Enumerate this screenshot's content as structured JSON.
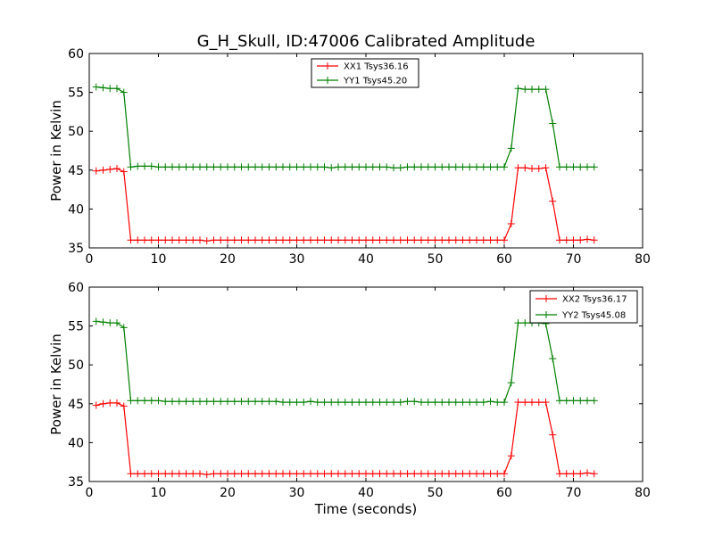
{
  "figure": {
    "title": "G_H_Skull, ID:47006 Calibrated Amplitude"
  },
  "colors": {
    "xx": "#ff0000",
    "yy": "#008000"
  },
  "chart_data": [
    {
      "type": "line",
      "title": "G_H_Skull, ID:47006 Calibrated Amplitude",
      "xlabel": "",
      "ylabel": "Power in Kelvin",
      "xlim": [
        0,
        80
      ],
      "ylim": [
        35,
        60
      ],
      "xticks": [
        0,
        10,
        20,
        30,
        40,
        50,
        60,
        70,
        80
      ],
      "yticks": [
        35,
        40,
        45,
        50,
        55,
        60
      ],
      "grid": false,
      "legend": "top-center",
      "series": [
        {
          "name": "XX1 Tsys36.16",
          "color": "#ff0000",
          "x": [
            1,
            2,
            3,
            4,
            5,
            6,
            7,
            8,
            9,
            10,
            11,
            12,
            13,
            14,
            15,
            16,
            17,
            18,
            19,
            20,
            21,
            22,
            23,
            24,
            25,
            26,
            27,
            28,
            29,
            30,
            31,
            32,
            33,
            34,
            35,
            36,
            37,
            38,
            39,
            40,
            41,
            42,
            43,
            44,
            45,
            46,
            47,
            48,
            49,
            50,
            51,
            52,
            53,
            54,
            55,
            56,
            57,
            58,
            59,
            60,
            61,
            62,
            63,
            64,
            65,
            66,
            67,
            68,
            69,
            70,
            71,
            72,
            73
          ],
          "y": [
            44.9,
            45.0,
            45.1,
            45.2,
            44.8,
            36.0,
            36.0,
            36.0,
            36.0,
            36.0,
            36.0,
            36.0,
            36.0,
            36.0,
            36.0,
            36.0,
            35.9,
            36.0,
            36.0,
            36.0,
            36.0,
            36.0,
            36.0,
            36.0,
            36.0,
            36.0,
            36.0,
            36.0,
            36.0,
            36.0,
            36.0,
            36.0,
            36.0,
            36.0,
            36.0,
            36.0,
            36.0,
            36.0,
            36.0,
            36.0,
            36.0,
            36.0,
            36.0,
            36.0,
            36.0,
            36.0,
            36.0,
            36.0,
            36.0,
            36.0,
            36.0,
            36.0,
            36.0,
            36.0,
            36.0,
            36.0,
            36.0,
            36.0,
            36.0,
            36.0,
            38.1,
            45.3,
            45.3,
            45.2,
            45.2,
            45.3,
            41.0,
            36.0,
            36.0,
            36.0,
            36.0,
            36.1,
            36.0
          ]
        },
        {
          "name": "YY1 Tsys45.20",
          "color": "#008000",
          "x": [
            1,
            2,
            3,
            4,
            5,
            6,
            7,
            8,
            9,
            10,
            11,
            12,
            13,
            14,
            15,
            16,
            17,
            18,
            19,
            20,
            21,
            22,
            23,
            24,
            25,
            26,
            27,
            28,
            29,
            30,
            31,
            32,
            33,
            34,
            35,
            36,
            37,
            38,
            39,
            40,
            41,
            42,
            43,
            44,
            45,
            46,
            47,
            48,
            49,
            50,
            51,
            52,
            53,
            54,
            55,
            56,
            57,
            58,
            59,
            60,
            61,
            62,
            63,
            64,
            65,
            66,
            67,
            68,
            69,
            70,
            71,
            72,
            73
          ],
          "y": [
            55.7,
            55.6,
            55.5,
            55.5,
            55.0,
            45.4,
            45.5,
            45.5,
            45.5,
            45.4,
            45.4,
            45.4,
            45.4,
            45.4,
            45.4,
            45.4,
            45.4,
            45.4,
            45.4,
            45.4,
            45.4,
            45.4,
            45.4,
            45.4,
            45.4,
            45.4,
            45.4,
            45.4,
            45.4,
            45.4,
            45.4,
            45.4,
            45.4,
            45.4,
            45.3,
            45.4,
            45.4,
            45.4,
            45.4,
            45.4,
            45.4,
            45.4,
            45.4,
            45.3,
            45.3,
            45.4,
            45.4,
            45.4,
            45.4,
            45.4,
            45.4,
            45.4,
            45.4,
            45.4,
            45.4,
            45.4,
            45.4,
            45.4,
            45.4,
            45.4,
            47.8,
            55.5,
            55.4,
            55.4,
            55.4,
            55.4,
            51.0,
            45.4,
            45.4,
            45.4,
            45.4,
            45.4,
            45.4
          ]
        }
      ]
    },
    {
      "type": "line",
      "title": "",
      "xlabel": "Time (seconds)",
      "ylabel": "Power in Kelvin",
      "xlim": [
        0,
        80
      ],
      "ylim": [
        35,
        60
      ],
      "xticks": [
        0,
        10,
        20,
        30,
        40,
        50,
        60,
        70,
        80
      ],
      "yticks": [
        35,
        40,
        45,
        50,
        55,
        60
      ],
      "grid": false,
      "legend": "top-right",
      "series": [
        {
          "name": "XX2 Tsys36.17",
          "color": "#ff0000",
          "x": [
            1,
            2,
            3,
            4,
            5,
            6,
            7,
            8,
            9,
            10,
            11,
            12,
            13,
            14,
            15,
            16,
            17,
            18,
            19,
            20,
            21,
            22,
            23,
            24,
            25,
            26,
            27,
            28,
            29,
            30,
            31,
            32,
            33,
            34,
            35,
            36,
            37,
            38,
            39,
            40,
            41,
            42,
            43,
            44,
            45,
            46,
            47,
            48,
            49,
            50,
            51,
            52,
            53,
            54,
            55,
            56,
            57,
            58,
            59,
            60,
            61,
            62,
            63,
            64,
            65,
            66,
            67,
            68,
            69,
            70,
            71,
            72,
            73
          ],
          "y": [
            44.8,
            45.0,
            45.1,
            45.1,
            44.7,
            36.0,
            36.0,
            36.0,
            36.0,
            36.0,
            36.0,
            36.0,
            36.0,
            36.0,
            36.0,
            36.0,
            35.9,
            36.0,
            36.0,
            36.0,
            36.0,
            36.0,
            36.0,
            36.0,
            36.0,
            36.0,
            36.0,
            36.0,
            36.0,
            36.0,
            36.0,
            36.0,
            36.0,
            36.0,
            36.0,
            36.0,
            36.0,
            36.0,
            36.0,
            36.0,
            36.0,
            36.0,
            36.0,
            36.0,
            36.0,
            36.0,
            36.0,
            36.0,
            36.0,
            36.0,
            36.0,
            36.0,
            36.0,
            36.0,
            36.0,
            36.0,
            36.0,
            36.0,
            36.0,
            36.0,
            38.3,
            45.2,
            45.2,
            45.2,
            45.2,
            45.2,
            41.0,
            36.0,
            36.0,
            36.0,
            36.0,
            36.1,
            36.0
          ]
        },
        {
          "name": "YY2 Tsys45.08",
          "color": "#008000",
          "x": [
            1,
            2,
            3,
            4,
            5,
            6,
            7,
            8,
            9,
            10,
            11,
            12,
            13,
            14,
            15,
            16,
            17,
            18,
            19,
            20,
            21,
            22,
            23,
            24,
            25,
            26,
            27,
            28,
            29,
            30,
            31,
            32,
            33,
            34,
            35,
            36,
            37,
            38,
            39,
            40,
            41,
            42,
            43,
            44,
            45,
            46,
            47,
            48,
            49,
            50,
            51,
            52,
            53,
            54,
            55,
            56,
            57,
            58,
            59,
            60,
            61,
            62,
            63,
            64,
            65,
            66,
            67,
            68,
            69,
            70,
            71,
            72,
            73
          ],
          "y": [
            55.6,
            55.5,
            55.4,
            55.4,
            54.8,
            45.4,
            45.4,
            45.4,
            45.4,
            45.4,
            45.3,
            45.3,
            45.3,
            45.3,
            45.3,
            45.3,
            45.3,
            45.3,
            45.3,
            45.3,
            45.3,
            45.3,
            45.3,
            45.3,
            45.3,
            45.3,
            45.3,
            45.2,
            45.2,
            45.2,
            45.2,
            45.3,
            45.2,
            45.2,
            45.2,
            45.2,
            45.2,
            45.2,
            45.2,
            45.2,
            45.2,
            45.2,
            45.2,
            45.2,
            45.2,
            45.3,
            45.3,
            45.2,
            45.2,
            45.2,
            45.2,
            45.2,
            45.2,
            45.2,
            45.2,
            45.2,
            45.2,
            45.3,
            45.2,
            45.2,
            47.7,
            55.4,
            55.4,
            55.4,
            55.4,
            55.3,
            50.8,
            45.4,
            45.4,
            45.4,
            45.4,
            45.4,
            45.4
          ]
        }
      ]
    }
  ]
}
